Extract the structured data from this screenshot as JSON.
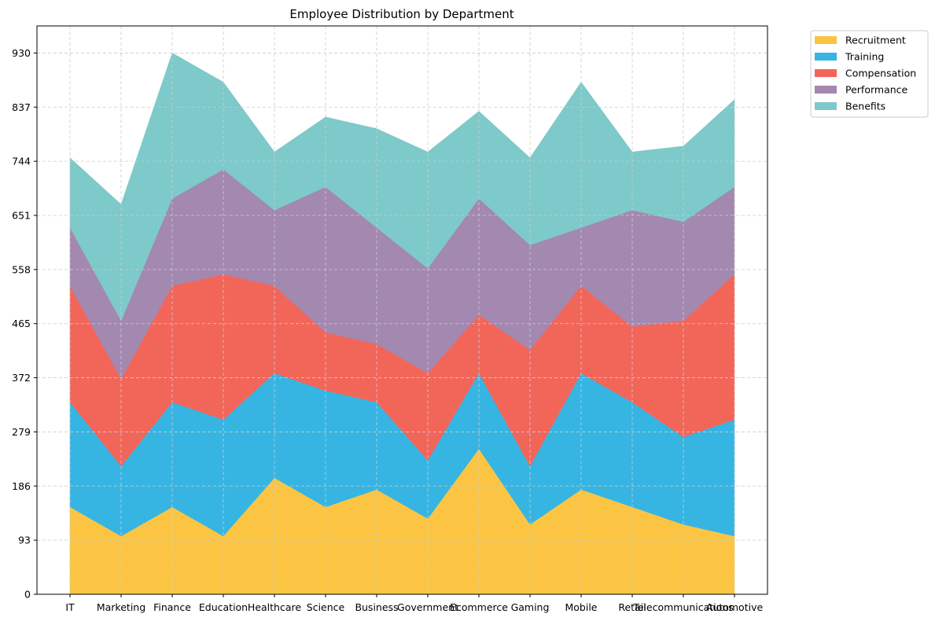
{
  "chart_data": {
    "type": "area",
    "stacked": true,
    "title": "Employee Distribution by Department",
    "xlabel": "",
    "ylabel": "",
    "categories": [
      "IT",
      "Marketing",
      "Finance",
      "Education",
      "Healthcare",
      "Science",
      "Business",
      "Government",
      "Ecommerce",
      "Gaming",
      "Mobile",
      "Retail",
      "Telecommunications",
      "Automotive"
    ],
    "yticks": [
      0,
      93,
      186,
      279,
      372,
      465,
      558,
      651,
      744,
      837,
      930
    ],
    "ylim": [
      0,
      976.5
    ],
    "grid": true,
    "legend_position": "outside-top-right",
    "series": [
      {
        "name": "Recruitment",
        "color": "#FBC543",
        "values": [
          150,
          100,
          150,
          100,
          200,
          150,
          180,
          130,
          250,
          120,
          180,
          150,
          120,
          100
        ]
      },
      {
        "name": "Training",
        "color": "#36B5E3",
        "values": [
          180,
          120,
          180,
          200,
          180,
          200,
          150,
          100,
          130,
          100,
          200,
          180,
          150,
          200
        ]
      },
      {
        "name": "Compensation",
        "color": "#F2665A",
        "values": [
          200,
          150,
          200,
          250,
          150,
          100,
          100,
          150,
          100,
          200,
          150,
          130,
          200,
          250
        ]
      },
      {
        "name": "Performance",
        "color": "#A388B0",
        "values": [
          100,
          100,
          150,
          180,
          130,
          250,
          200,
          180,
          200,
          180,
          100,
          200,
          170,
          150
        ]
      },
      {
        "name": "Benefits",
        "color": "#7EC9C9",
        "values": [
          120,
          200,
          250,
          150,
          100,
          120,
          170,
          200,
          150,
          150,
          250,
          100,
          130,
          150
        ]
      }
    ]
  }
}
